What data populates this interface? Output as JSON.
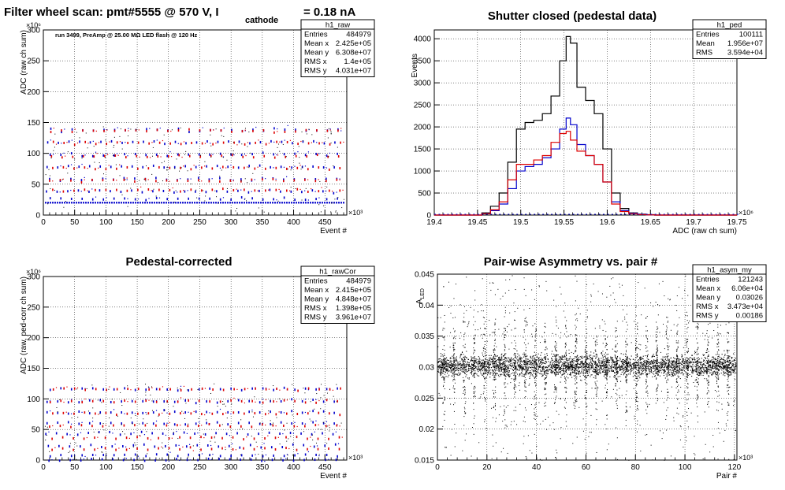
{
  "chart_data": [
    {
      "type": "scatter",
      "title_main": "Filter wheel scan: pmt#5555 @   570 V, I",
      "title_sub": "cathode",
      "title_tail": "= 0.18 nA",
      "annotation": "run 3499, PreAmp @ 25.00 MΩ LED flash @  120 Hz",
      "xlabel": "Event #",
      "ylabel": "ADC (raw ch sum)",
      "x_exponent": "×10³",
      "y_exponent": "×10⁶",
      "xlim": [
        0,
        485
      ],
      "ylim": [
        0,
        300
      ],
      "x_ticks": [
        "0",
        "50",
        "100",
        "150",
        "200",
        "250",
        "300",
        "350",
        "400",
        "450"
      ],
      "y_ticks": [
        "0",
        "50",
        "100",
        "150",
        "200",
        "250",
        "300"
      ],
      "grid": true,
      "stats": {
        "name": "h1_raw",
        "rows": [
          [
            "Entries",
            "484979"
          ],
          [
            "Mean x",
            "2.425e+05"
          ],
          [
            "Mean y",
            "6.308e+07"
          ],
          [
            "RMS x",
            "1.4e+05"
          ],
          [
            "RMS y",
            "4.031e+07"
          ]
        ]
      },
      "series": [
        {
          "color": "#0000cc",
          "levels": [
            20,
            28,
            40,
            60,
            80,
            100,
            120,
            140
          ]
        },
        {
          "color": "#dd0000",
          "levels": [
            42,
            58,
            78,
            97,
            118,
            138
          ]
        }
      ]
    },
    {
      "type": "line",
      "title": "Shutter closed (pedestal data)",
      "xlabel": "ADC (raw ch sum)",
      "ylabel": "Events",
      "x_exponent": "×10⁶",
      "xlim": [
        19.4,
        19.75
      ],
      "ylim": [
        0,
        4200
      ],
      "x_ticks": [
        "19.4",
        "19.45",
        "19.5",
        "19.55",
        "19.6",
        "19.65",
        "19.7",
        "19.75"
      ],
      "y_ticks": [
        "0",
        "500",
        "1000",
        "1500",
        "2000",
        "2500",
        "3000",
        "3500",
        "4000"
      ],
      "grid": true,
      "stats": {
        "name": "h1_ped",
        "rows": [
          [
            "Entries",
            "100111"
          ],
          [
            "Mean",
            "1.956e+07"
          ],
          [
            "RMS",
            "3.594e+04"
          ]
        ]
      },
      "x": [
        19.46,
        19.47,
        19.48,
        19.49,
        19.5,
        19.51,
        19.52,
        19.53,
        19.54,
        19.55,
        19.555,
        19.56,
        19.57,
        19.58,
        19.59,
        19.6,
        19.61,
        19.62,
        19.63,
        19.64,
        19.65
      ],
      "series": [
        {
          "color": "#000000",
          "values": [
            50,
            200,
            500,
            1200,
            1950,
            2100,
            2150,
            2300,
            2700,
            3500,
            4050,
            3900,
            2900,
            2600,
            2300,
            1500,
            500,
            150,
            50,
            20,
            10
          ]
        },
        {
          "color": "#0000cc",
          "values": [
            30,
            100,
            250,
            600,
            1000,
            1100,
            1150,
            1300,
            1500,
            1950,
            2200,
            2050,
            1600,
            1350,
            1150,
            750,
            300,
            100,
            40,
            15,
            5
          ]
        },
        {
          "color": "#dd0000",
          "values": [
            30,
            120,
            300,
            800,
            1150,
            1150,
            1250,
            1350,
            1650,
            1850,
            1900,
            1700,
            1450,
            1350,
            1150,
            750,
            250,
            80,
            30,
            10,
            5
          ]
        }
      ]
    },
    {
      "type": "scatter",
      "title": "Pedestal-corrected",
      "xlabel": "Event #",
      "ylabel": "ADC (raw, ped-corr ch sum)",
      "x_exponent": "×10³",
      "y_exponent": "×10⁶",
      "xlim": [
        0,
        485
      ],
      "ylim": [
        0,
        300
      ],
      "x_ticks": [
        "0",
        "50",
        "100",
        "150",
        "200",
        "250",
        "300",
        "350",
        "400",
        "450"
      ],
      "y_ticks": [
        "0",
        "50",
        "100",
        "150",
        "200",
        "250",
        "300"
      ],
      "grid": true,
      "stats": {
        "name": "h1_rawCor",
        "rows": [
          [
            "Entries",
            "484979"
          ],
          [
            "Mean x",
            "2.415e+05"
          ],
          [
            "Mean y",
            "4.848e+07"
          ],
          [
            "RMS x",
            "1.398e+05"
          ],
          [
            "RMS y",
            "3.961e+07"
          ]
        ]
      },
      "series": [
        {
          "color": "#0000cc",
          "levels": [
            2,
            10,
            25,
            45,
            62,
            80,
            98,
            118
          ]
        },
        {
          "color": "#dd0000",
          "levels": [
            20,
            38,
            58,
            78,
            98,
            118
          ]
        }
      ]
    },
    {
      "type": "scatter",
      "title": "Pair-wise Asymmetry vs. pair #",
      "xlabel": "Pair #",
      "ylabel": "A_LED",
      "x_exponent": "×10³",
      "xlim": [
        0,
        121
      ],
      "ylim": [
        0.015,
        0.045
      ],
      "x_ticks": [
        "0",
        "20",
        "40",
        "60",
        "80",
        "100",
        "120"
      ],
      "y_ticks": [
        "0.015",
        "0.02",
        "0.025",
        "0.03",
        "0.035",
        "0.04",
        "0.045"
      ],
      "grid": true,
      "stats": {
        "name": "h1_asym_my",
        "rows": [
          [
            "Entries",
            "121243"
          ],
          [
            "Mean x",
            "6.06e+04"
          ],
          [
            "Mean y",
            "0.03026"
          ],
          [
            "RMS x",
            "3.473e+04"
          ],
          [
            "RMS y",
            "0.00186"
          ]
        ]
      },
      "band_center": 0.0303,
      "band_halfwidth": 0.0012,
      "spike_spacing": 4.1
    }
  ]
}
